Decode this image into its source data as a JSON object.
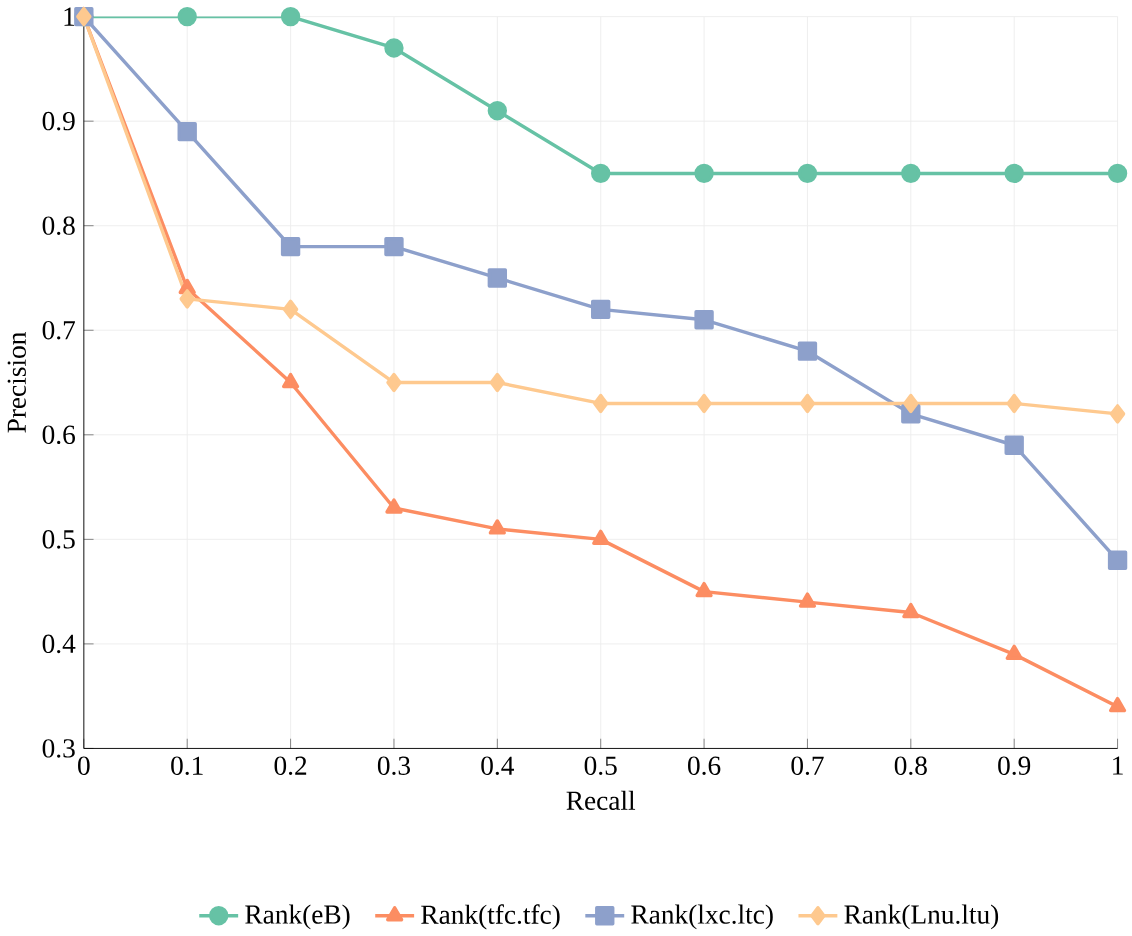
{
  "chart_data": {
    "type": "line",
    "xlabel": "Recall",
    "ylabel": "Precision",
    "x": [
      0,
      0.1,
      0.2,
      0.3,
      0.4,
      0.5,
      0.6,
      0.7,
      0.8,
      0.9,
      1
    ],
    "series": [
      {
        "name": "Rank(eB)",
        "color": "#66c2a5",
        "marker": "circle",
        "values": [
          1,
          1,
          1,
          0.97,
          0.91,
          0.85,
          0.85,
          0.85,
          0.85,
          0.85,
          0.85
        ]
      },
      {
        "name": "Rank(tfc.tfc)",
        "color": "#fc8d62",
        "marker": "triangle",
        "values": [
          1,
          0.74,
          0.65,
          0.53,
          0.51,
          0.5,
          0.45,
          0.44,
          0.43,
          0.39,
          0.34
        ]
      },
      {
        "name": "Rank(lxc.ltc)",
        "color": "#8da0cb",
        "marker": "square",
        "values": [
          1,
          0.89,
          0.78,
          0.78,
          0.75,
          0.72,
          0.71,
          0.68,
          0.62,
          0.59,
          0.48
        ]
      },
      {
        "name": "Rank(Lnu.ltu)",
        "color": "#fec98f",
        "marker": "diamond",
        "values": [
          1,
          0.73,
          0.72,
          0.65,
          0.65,
          0.63,
          0.63,
          0.63,
          0.63,
          0.63,
          0.62
        ]
      }
    ],
    "xlim": [
      0,
      1
    ],
    "ylim": [
      0.3,
      1
    ],
    "xticks": [
      0,
      0.1,
      0.2,
      0.3,
      0.4,
      0.5,
      0.6,
      0.7,
      0.8,
      0.9,
      1
    ],
    "yticks": [
      0.3,
      0.4,
      0.5,
      0.6,
      0.7,
      0.8,
      0.9,
      1
    ],
    "grid": true,
    "legend": "bottom",
    "line_style": "solid"
  }
}
